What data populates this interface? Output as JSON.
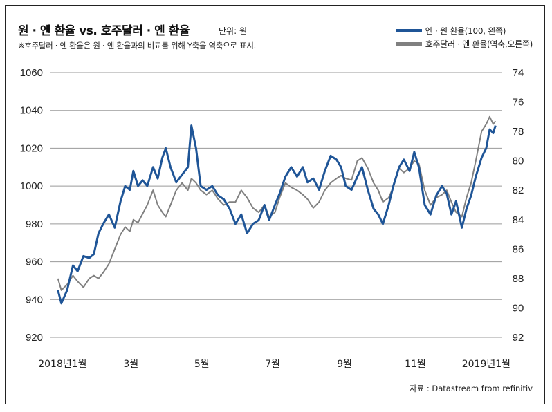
{
  "header": {
    "title": "원 · 엔 환율 vs. 호주달러 · 엔 환율",
    "unit": "단위: 원",
    "note": "※호주달러 · 엔 환율은 원 · 엔 환율과의 비교를 위해 Y축을 역축으로 표시."
  },
  "source": "자료 : Datastream from refinitiv",
  "colors": {
    "krw_jpy": "#1f5597",
    "aud_jpy": "#808080",
    "grid": "#9a9a9a"
  },
  "chart_data": {
    "type": "line",
    "x_range": [
      "2018-01-01",
      "2019-01-15"
    ],
    "x_ticks": [
      {
        "label": "2018년1월",
        "date": "2018-01"
      },
      {
        "label": "3월",
        "date": "2018-03"
      },
      {
        "label": "5월",
        "date": "2018-05"
      },
      {
        "label": "7월",
        "date": "2018-07"
      },
      {
        "label": "9월",
        "date": "2018-09"
      },
      {
        "label": "11월",
        "date": "2018-11"
      },
      {
        "label": "2019년1월",
        "date": "2019-01"
      }
    ],
    "y_left": {
      "min": 920,
      "max": 1060,
      "ticks": [
        1060,
        1040,
        1020,
        1000,
        980,
        960,
        940,
        920
      ]
    },
    "y_right": {
      "min": 74,
      "max": 92,
      "inverted": true,
      "ticks": [
        74,
        76,
        78,
        80,
        82,
        84,
        86,
        88,
        90,
        92
      ]
    },
    "grid": true,
    "legend_position": "top-right",
    "series": [
      {
        "name": "엔 · 원 환율(100, 왼쪽)",
        "axis": "left",
        "points": [
          [
            "2018-01-02",
            945
          ],
          [
            "2018-01-05",
            938
          ],
          [
            "2018-01-10",
            945
          ],
          [
            "2018-01-15",
            958
          ],
          [
            "2018-01-19",
            955
          ],
          [
            "2018-01-24",
            963
          ],
          [
            "2018-01-29",
            962
          ],
          [
            "2018-02-02",
            964
          ],
          [
            "2018-02-06",
            975
          ],
          [
            "2018-02-10",
            980
          ],
          [
            "2018-02-15",
            985
          ],
          [
            "2018-02-20",
            978
          ],
          [
            "2018-02-25",
            992
          ],
          [
            "2018-03-01",
            1000
          ],
          [
            "2018-03-05",
            998
          ],
          [
            "2018-03-08",
            1008
          ],
          [
            "2018-03-12",
            1000
          ],
          [
            "2018-03-16",
            1003
          ],
          [
            "2018-03-20",
            1000
          ],
          [
            "2018-03-25",
            1010
          ],
          [
            "2018-03-29",
            1004
          ],
          [
            "2018-04-02",
            1015
          ],
          [
            "2018-04-05",
            1020
          ],
          [
            "2018-04-09",
            1010
          ],
          [
            "2018-04-14",
            1002
          ],
          [
            "2018-04-19",
            1006
          ],
          [
            "2018-04-24",
            1010
          ],
          [
            "2018-04-27",
            1032
          ],
          [
            "2018-05-01",
            1020
          ],
          [
            "2018-05-05",
            1000
          ],
          [
            "2018-05-10",
            998
          ],
          [
            "2018-05-15",
            1000
          ],
          [
            "2018-05-20",
            995
          ],
          [
            "2018-05-25",
            993
          ],
          [
            "2018-05-30",
            988
          ],
          [
            "2018-06-04",
            980
          ],
          [
            "2018-06-09",
            985
          ],
          [
            "2018-06-14",
            975
          ],
          [
            "2018-06-19",
            980
          ],
          [
            "2018-06-24",
            982
          ],
          [
            "2018-06-29",
            990
          ],
          [
            "2018-07-03",
            982
          ],
          [
            "2018-07-08",
            990
          ],
          [
            "2018-07-12",
            996
          ],
          [
            "2018-07-17",
            1005
          ],
          [
            "2018-07-22",
            1010
          ],
          [
            "2018-07-27",
            1005
          ],
          [
            "2018-08-01",
            1010
          ],
          [
            "2018-08-05",
            1002
          ],
          [
            "2018-08-10",
            1004
          ],
          [
            "2018-08-15",
            998
          ],
          [
            "2018-08-20",
            1008
          ],
          [
            "2018-08-25",
            1016
          ],
          [
            "2018-08-30",
            1014
          ],
          [
            "2018-09-03",
            1010
          ],
          [
            "2018-09-07",
            1000
          ],
          [
            "2018-09-12",
            998
          ],
          [
            "2018-09-17",
            1005
          ],
          [
            "2018-09-21",
            1010
          ],
          [
            "2018-09-26",
            998
          ],
          [
            "2018-10-01",
            988
          ],
          [
            "2018-10-05",
            985
          ],
          [
            "2018-10-09",
            980
          ],
          [
            "2018-10-14",
            990
          ],
          [
            "2018-10-18",
            1000
          ],
          [
            "2018-10-23",
            1010
          ],
          [
            "2018-10-27",
            1014
          ],
          [
            "2018-11-01",
            1008
          ],
          [
            "2018-11-05",
            1018
          ],
          [
            "2018-11-09",
            1010
          ],
          [
            "2018-11-14",
            990
          ],
          [
            "2018-11-19",
            985
          ],
          [
            "2018-11-24",
            995
          ],
          [
            "2018-11-29",
            1000
          ],
          [
            "2018-12-03",
            996
          ],
          [
            "2018-12-07",
            985
          ],
          [
            "2018-12-11",
            992
          ],
          [
            "2018-12-16",
            978
          ],
          [
            "2018-12-20",
            988
          ],
          [
            "2018-12-24",
            995
          ],
          [
            "2018-12-28",
            1005
          ],
          [
            "2019-01-02",
            1015
          ],
          [
            "2019-01-06",
            1020
          ],
          [
            "2019-01-09",
            1030
          ],
          [
            "2019-01-12",
            1028
          ],
          [
            "2019-01-14",
            1032
          ]
        ]
      },
      {
        "name": "호주달러 · 엔 환율(역축,오른쪽)",
        "axis": "right",
        "points": [
          [
            "2018-01-02",
            88.0
          ],
          [
            "2018-01-05",
            88.8
          ],
          [
            "2018-01-10",
            88.4
          ],
          [
            "2018-01-15",
            87.8
          ],
          [
            "2018-01-19",
            88.2
          ],
          [
            "2018-01-24",
            88.6
          ],
          [
            "2018-01-29",
            88.0
          ],
          [
            "2018-02-02",
            87.8
          ],
          [
            "2018-02-06",
            88.0
          ],
          [
            "2018-02-10",
            87.6
          ],
          [
            "2018-02-15",
            87.0
          ],
          [
            "2018-02-20",
            86.0
          ],
          [
            "2018-02-25",
            85.0
          ],
          [
            "2018-03-01",
            84.5
          ],
          [
            "2018-03-05",
            84.8
          ],
          [
            "2018-03-08",
            84.0
          ],
          [
            "2018-03-12",
            84.2
          ],
          [
            "2018-03-16",
            83.6
          ],
          [
            "2018-03-20",
            83.0
          ],
          [
            "2018-03-25",
            82.0
          ],
          [
            "2018-03-29",
            83.0
          ],
          [
            "2018-04-02",
            83.5
          ],
          [
            "2018-04-05",
            83.8
          ],
          [
            "2018-04-09",
            83.0
          ],
          [
            "2018-04-14",
            82.0
          ],
          [
            "2018-04-19",
            81.5
          ],
          [
            "2018-04-24",
            82.0
          ],
          [
            "2018-04-27",
            81.2
          ],
          [
            "2018-05-01",
            81.5
          ],
          [
            "2018-05-05",
            82.0
          ],
          [
            "2018-05-10",
            82.3
          ],
          [
            "2018-05-15",
            82.0
          ],
          [
            "2018-05-20",
            82.6
          ],
          [
            "2018-05-25",
            83.0
          ],
          [
            "2018-05-30",
            82.8
          ],
          [
            "2018-06-04",
            82.8
          ],
          [
            "2018-06-09",
            82.0
          ],
          [
            "2018-06-14",
            82.5
          ],
          [
            "2018-06-19",
            83.2
          ],
          [
            "2018-06-24",
            83.5
          ],
          [
            "2018-06-29",
            83.0
          ],
          [
            "2018-07-03",
            83.8
          ],
          [
            "2018-07-08",
            83.5
          ],
          [
            "2018-07-12",
            82.5
          ],
          [
            "2018-07-17",
            81.5
          ],
          [
            "2018-07-22",
            81.8
          ],
          [
            "2018-07-27",
            82.0
          ],
          [
            "2018-08-01",
            82.3
          ],
          [
            "2018-08-05",
            82.6
          ],
          [
            "2018-08-10",
            83.2
          ],
          [
            "2018-08-15",
            82.8
          ],
          [
            "2018-08-20",
            82.0
          ],
          [
            "2018-08-25",
            81.5
          ],
          [
            "2018-08-30",
            81.2
          ],
          [
            "2018-09-03",
            81.0
          ],
          [
            "2018-09-07",
            81.2
          ],
          [
            "2018-09-12",
            81.3
          ],
          [
            "2018-09-17",
            80.0
          ],
          [
            "2018-09-21",
            79.8
          ],
          [
            "2018-09-26",
            80.5
          ],
          [
            "2018-10-01",
            81.5
          ],
          [
            "2018-10-05",
            82.0
          ],
          [
            "2018-10-09",
            82.8
          ],
          [
            "2018-10-14",
            82.5
          ],
          [
            "2018-10-18",
            81.8
          ],
          [
            "2018-10-23",
            80.5
          ],
          [
            "2018-10-27",
            80.8
          ],
          [
            "2018-11-01",
            80.5
          ],
          [
            "2018-11-05",
            80.0
          ],
          [
            "2018-11-09",
            80.2
          ],
          [
            "2018-11-14",
            82.0
          ],
          [
            "2018-11-19",
            83.0
          ],
          [
            "2018-11-24",
            82.5
          ],
          [
            "2018-11-29",
            82.3
          ],
          [
            "2018-12-03",
            82.0
          ],
          [
            "2018-12-07",
            82.8
          ],
          [
            "2018-12-11",
            83.5
          ],
          [
            "2018-12-16",
            83.8
          ],
          [
            "2018-12-20",
            82.5
          ],
          [
            "2018-12-24",
            81.5
          ],
          [
            "2018-12-28",
            80.0
          ],
          [
            "2019-01-02",
            78.0
          ],
          [
            "2019-01-06",
            77.5
          ],
          [
            "2019-01-09",
            77.0
          ],
          [
            "2019-01-12",
            77.5
          ],
          [
            "2019-01-14",
            77.3
          ]
        ]
      }
    ]
  }
}
